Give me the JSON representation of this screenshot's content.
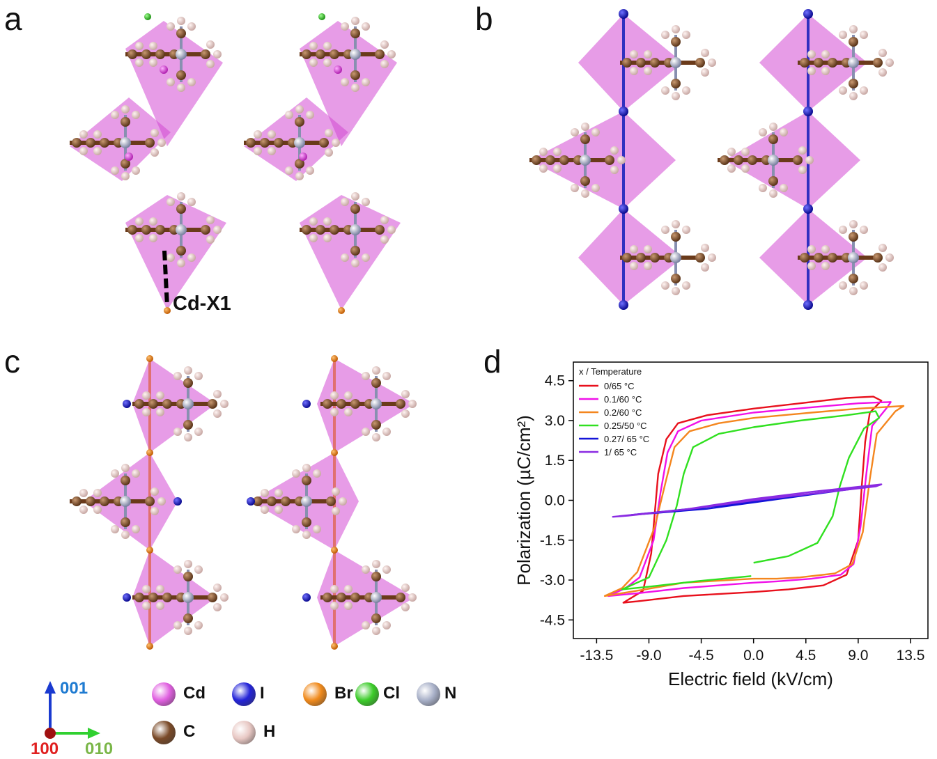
{
  "panels": {
    "a": "a",
    "b": "b",
    "c": "c",
    "d": "d"
  },
  "annotation_a": "Cd-X1",
  "axes_indicator": {
    "vertical": "001",
    "horizontal": "010",
    "origin": "100",
    "colors": {
      "vertical": "#1f7bd1",
      "horizontal": "#7ab648",
      "origin": "#e02020"
    }
  },
  "element_legend": [
    {
      "symbol": "Cd",
      "color": "#e060e0"
    },
    {
      "symbol": "I",
      "color": "#2424d8"
    },
    {
      "symbol": "Br",
      "color": "#f08a1c"
    },
    {
      "symbol": "Cl",
      "color": "#3ccc2a"
    },
    {
      "symbol": "N",
      "color": "#a8b0c8"
    },
    {
      "symbol": "C",
      "color": "#7a4a28"
    },
    {
      "symbol": "H",
      "color": "#e8c8c4"
    }
  ],
  "chart_data": {
    "type": "line",
    "title": "",
    "xlabel": "Electric field (kV/cm)",
    "ylabel": "Polarization (µC/cm²)",
    "xlim": [
      -15.5,
      15.0
    ],
    "ylim": [
      -5.2,
      5.2
    ],
    "xticks": [
      -13.5,
      -9.0,
      -4.5,
      0.0,
      4.5,
      9.0,
      13.5
    ],
    "xtick_labels": [
      "-13.5",
      "-9.0",
      "-4.5",
      "0.0",
      "4.5",
      "9.0",
      "13.5"
    ],
    "yticks": [
      -4.5,
      -3.0,
      -1.5,
      0.0,
      1.5,
      3.0,
      4.5
    ],
    "ytick_labels": [
      "-4.5",
      "-3.0",
      "-1.5",
      "0.0",
      "1.5",
      "3.0",
      "4.5"
    ],
    "legend_title": "x / Temperature",
    "legend_position": "top-left",
    "series": [
      {
        "name": "0/65 °C",
        "color": "#e8101c",
        "x": [
          0,
          -6,
          -10,
          -11.2,
          -9.5,
          -8.8,
          -8.5,
          -8.2,
          -7.5,
          -6.5,
          -4,
          0,
          4,
          8,
          10.3,
          11,
          10,
          9.6,
          9.3,
          9.0,
          8,
          6,
          3,
          0
        ],
        "y": [
          -3.45,
          -3.6,
          -3.8,
          -3.85,
          -3.4,
          -2.0,
          -0.5,
          1.0,
          2.3,
          2.9,
          3.2,
          3.45,
          3.65,
          3.85,
          3.9,
          3.75,
          3.3,
          2.2,
          0.5,
          -1.5,
          -2.8,
          -3.2,
          -3.35,
          -3.45
        ]
      },
      {
        "name": "0.1/60 °C",
        "color": "#f010e8",
        "x": [
          0,
          -6,
          -10,
          -12.5,
          -11,
          -9.8,
          -8.6,
          -8,
          -7.4,
          -6.5,
          -4.5,
          0,
          5,
          9,
          11.8,
          11.5,
          10.2,
          9.7,
          9.2,
          8.6,
          7.5,
          5,
          2,
          0
        ],
        "y": [
          -3.1,
          -3.3,
          -3.5,
          -3.6,
          -3.3,
          -2.9,
          -1.5,
          0.3,
          1.8,
          2.6,
          3.0,
          3.3,
          3.5,
          3.65,
          3.7,
          3.5,
          2.8,
          1.0,
          -1.0,
          -2.4,
          -2.8,
          -2.95,
          -3.05,
          -3.1
        ]
      },
      {
        "name": "0.2/60 °C",
        "color": "#f4861e",
        "x": [
          0,
          -6,
          -10,
          -12.8,
          -11.3,
          -10,
          -8.5,
          -7.5,
          -6.8,
          -5.5,
          -3,
          0,
          5,
          9,
          12.9,
          12.2,
          10.6,
          10,
          9.4,
          8.5,
          7,
          4,
          2,
          0
        ],
        "y": [
          -2.95,
          -3.1,
          -3.4,
          -3.6,
          -3.3,
          -2.7,
          -1.0,
          0.8,
          2.0,
          2.6,
          2.9,
          3.1,
          3.3,
          3.45,
          3.55,
          3.35,
          2.5,
          0.8,
          -1.2,
          -2.4,
          -2.75,
          -2.9,
          -2.95,
          -2.95
        ]
      },
      {
        "name": "0.25/50 °C",
        "color": "#30e020",
        "x": [
          -0.2,
          -5,
          -9,
          -11.3,
          -9,
          -7.5,
          -6.6,
          -6.0,
          -5.2,
          -3,
          0,
          4,
          8,
          10.5,
          10.8,
          9.5,
          8.2,
          7.4,
          6.8,
          5.5,
          3,
          0
        ],
        "y": [
          -2.85,
          -3.05,
          -3.25,
          -3.35,
          -2.9,
          -1.5,
          -0.2,
          1.0,
          2.0,
          2.5,
          2.75,
          3.0,
          3.2,
          3.35,
          3.1,
          2.7,
          1.6,
          0.5,
          -0.6,
          -1.6,
          -2.1,
          -2.35
        ]
      },
      {
        "name": "0.27/ 65 °C",
        "color": "#1414d8",
        "x": [
          0,
          -5,
          -10.5,
          -4,
          0,
          5,
          10.5,
          6,
          0
        ],
        "y": [
          -0.05,
          -0.3,
          -0.55,
          -0.32,
          -0.08,
          0.22,
          0.55,
          0.3,
          -0.05
        ]
      },
      {
        "name": "1/ 65 °C",
        "color": "#8a2be2",
        "x": [
          0,
          -5,
          -10.8,
          -12.1,
          -6,
          0,
          5,
          11,
          10.5,
          5,
          0
        ],
        "y": [
          0.0,
          -0.3,
          -0.58,
          -0.62,
          -0.35,
          0.05,
          0.32,
          0.6,
          0.52,
          0.25,
          0.0
        ]
      }
    ]
  }
}
